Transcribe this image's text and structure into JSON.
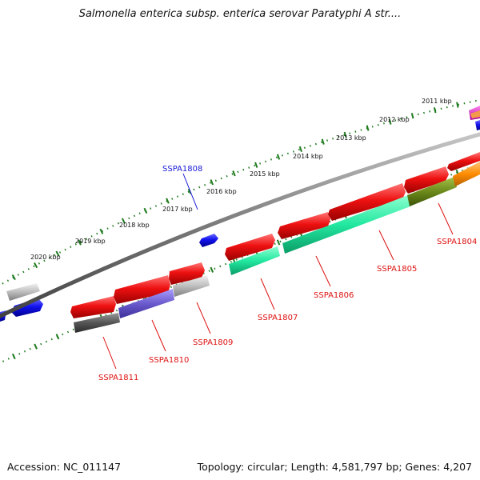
{
  "title": "Salmonella enterica subsp. enterica serovar Paratyphi A str....",
  "footer": {
    "accession": "Accession: NC_011147",
    "summary": "Topology: circular; Length: 4,581,797 bp; Genes: 4,207"
  },
  "ticks": [
    {
      "label": "2011 kbp"
    },
    {
      "label": "2012 kbp"
    },
    {
      "label": "2013 kbp"
    },
    {
      "label": "2014 kbp"
    },
    {
      "label": "2015 kbp"
    },
    {
      "label": "2016 kbp"
    },
    {
      "label": "2017 kbp"
    },
    {
      "label": "2018 kbp"
    },
    {
      "label": "2019 kbp"
    },
    {
      "label": "2020 kbp"
    }
  ],
  "gene_labels": [
    {
      "name": "SSPA1808",
      "color": "#1a1ad6"
    },
    {
      "name": "SSPA1804",
      "color": "#dd1111"
    },
    {
      "name": "SSPA1805",
      "color": "#dd1111"
    },
    {
      "name": "SSPA1806",
      "color": "#dd1111"
    },
    {
      "name": "SSPA1807",
      "color": "#dd1111"
    },
    {
      "name": "SSPA1809",
      "color": "#dd1111"
    },
    {
      "name": "SSPA1810",
      "color": "#dd1111"
    },
    {
      "name": "SSPA1811",
      "color": "#dd1111"
    }
  ],
  "colors": {
    "backbone": "#7a7a7a",
    "tick_marks": "#1f7a1f",
    "forward_gene": "#ee1111",
    "reverse_gene": "#1111ee",
    "cog_cyan": "#22e8a0",
    "cog_olive": "#6b8a1a",
    "cog_orange": "#ff8c00",
    "cog_slate": "#6a5acd",
    "cog_grey": "#bdbdbd",
    "cog_dark": "#555555"
  }
}
